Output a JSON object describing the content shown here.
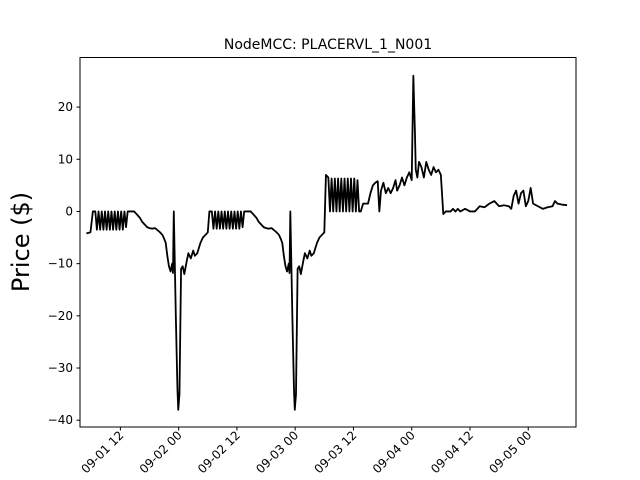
{
  "chart_data": {
    "type": "line",
    "title": "NodeMCC: PLACERVL_1_N001",
    "xlabel": "",
    "ylabel": "Price ($)",
    "ylim": [
      -41.3,
      29.5
    ],
    "xlim": [
      "09-01 03:41",
      "09-05 09:50"
    ],
    "grid": false,
    "y_ticks": [
      -40,
      -30,
      -20,
      -10,
      0,
      10,
      20
    ],
    "y_tick_labels": [
      "−40",
      "−30",
      "−20",
      "−10",
      "0",
      "10",
      "20"
    ],
    "x_ticks": [
      "09-01 12:00",
      "09-02 00:00",
      "09-02 12:00",
      "09-03 00:00",
      "09-03 12:00",
      "09-04 00:00",
      "09-04 12:00",
      "09-05 00:00"
    ],
    "x_tick_labels": [
      "09-01 12",
      "09-02 00",
      "09-02 12",
      "09-03 00",
      "09-03 12",
      "09-04 00",
      "09-04 12",
      "09-05 00"
    ],
    "series": [
      {
        "color": "#000000",
        "points": [
          [
            "09-01 05:00",
            -4.2
          ],
          [
            "09-01 05:50",
            -4.0
          ],
          [
            "09-01 06:20",
            0.0
          ],
          [
            "09-01 06:50",
            0.0
          ],
          [
            "09-01 07:10",
            -3.5
          ],
          [
            "09-01 07:30",
            0.0
          ],
          [
            "09-01 07:50",
            -3.5
          ],
          [
            "09-01 08:10",
            0.0
          ],
          [
            "09-01 08:30",
            -3.5
          ],
          [
            "09-01 08:50",
            0.0
          ],
          [
            "09-01 09:10",
            -3.5
          ],
          [
            "09-01 09:30",
            0.0
          ],
          [
            "09-01 09:50",
            -3.5
          ],
          [
            "09-01 10:10",
            0.0
          ],
          [
            "09-01 10:30",
            -3.5
          ],
          [
            "09-01 10:50",
            0.0
          ],
          [
            "09-01 11:10",
            -3.5
          ],
          [
            "09-01 11:30",
            0.0
          ],
          [
            "09-01 11:50",
            -3.5
          ],
          [
            "09-01 12:10",
            0.0
          ],
          [
            "09-01 12:30",
            -3.5
          ],
          [
            "09-01 12:50",
            0.0
          ],
          [
            "09-01 13:10",
            -3.0
          ],
          [
            "09-01 13:30",
            0.0
          ],
          [
            "09-01 14:50",
            0.0
          ],
          [
            "09-01 15:20",
            -0.5
          ],
          [
            "09-01 16:00",
            -1.2
          ],
          [
            "09-01 16:30",
            -2.0
          ],
          [
            "09-01 17:00",
            -2.5
          ],
          [
            "09-01 17:30",
            -3.0
          ],
          [
            "09-01 18:00",
            -3.2
          ],
          [
            "09-01 18:30",
            -3.3
          ],
          [
            "09-01 19:10",
            -3.2
          ],
          [
            "09-01 19:40",
            -3.6
          ],
          [
            "09-01 20:10",
            -4.0
          ],
          [
            "09-01 20:40",
            -4.5
          ],
          [
            "09-01 21:00",
            -5.2
          ],
          [
            "09-01 21:20",
            -6.0
          ],
          [
            "09-01 21:40",
            -8.5
          ],
          [
            "09-01 22:00",
            -10.5
          ],
          [
            "09-01 22:20",
            -11.5
          ],
          [
            "09-01 22:40",
            -10.0
          ],
          [
            "09-01 22:50",
            -11.8
          ],
          [
            "09-01 23:00",
            0.0
          ],
          [
            "09-01 23:25",
            -20.0
          ],
          [
            "09-01 23:45",
            -34.0
          ],
          [
            "09-01 23:55",
            -38.0
          ],
          [
            "09-02 00:10",
            -35.0
          ],
          [
            "09-02 00:30",
            -11.0
          ],
          [
            "09-02 00:50",
            -10.5
          ],
          [
            "09-02 01:10",
            -12.0
          ],
          [
            "09-02 01:40",
            -9.5
          ],
          [
            "09-02 02:00",
            -8.0
          ],
          [
            "09-02 02:30",
            -9.0
          ],
          [
            "09-02 03:00",
            -7.5
          ],
          [
            "09-02 03:20",
            -8.5
          ],
          [
            "09-02 03:50",
            -8.0
          ],
          [
            "09-02 04:30",
            -6.0
          ],
          [
            "09-02 05:00",
            -5.0
          ],
          [
            "09-02 05:30",
            -4.5
          ],
          [
            "09-02 06:00",
            -4.0
          ],
          [
            "09-02 06:20",
            0.0
          ],
          [
            "09-02 06:50",
            0.0
          ],
          [
            "09-02 07:10",
            -3.3
          ],
          [
            "09-02 07:30",
            0.0
          ],
          [
            "09-02 07:50",
            -3.3
          ],
          [
            "09-02 08:10",
            0.0
          ],
          [
            "09-02 08:30",
            -3.3
          ],
          [
            "09-02 08:50",
            0.0
          ],
          [
            "09-02 09:10",
            -3.3
          ],
          [
            "09-02 09:30",
            0.0
          ],
          [
            "09-02 09:50",
            -3.3
          ],
          [
            "09-02 10:10",
            0.0
          ],
          [
            "09-02 10:30",
            -3.3
          ],
          [
            "09-02 10:50",
            0.0
          ],
          [
            "09-02 11:10",
            -3.3
          ],
          [
            "09-02 11:30",
            0.0
          ],
          [
            "09-02 11:50",
            -3.3
          ],
          [
            "09-02 12:10",
            0.0
          ],
          [
            "09-02 12:30",
            -3.3
          ],
          [
            "09-02 12:50",
            0.0
          ],
          [
            "09-02 13:10",
            -3.0
          ],
          [
            "09-02 13:30",
            0.0
          ],
          [
            "09-02 14:50",
            0.0
          ],
          [
            "09-02 15:20",
            -0.5
          ],
          [
            "09-02 16:00",
            -1.2
          ],
          [
            "09-02 16:30",
            -2.0
          ],
          [
            "09-02 17:00",
            -2.5
          ],
          [
            "09-02 17:30",
            -3.0
          ],
          [
            "09-02 18:00",
            -3.2
          ],
          [
            "09-02 18:30",
            -3.3
          ],
          [
            "09-02 19:10",
            -3.2
          ],
          [
            "09-02 19:40",
            -3.6
          ],
          [
            "09-02 20:10",
            -4.0
          ],
          [
            "09-02 20:40",
            -4.5
          ],
          [
            "09-02 21:00",
            -5.2
          ],
          [
            "09-02 21:20",
            -6.0
          ],
          [
            "09-02 21:40",
            -8.5
          ],
          [
            "09-02 22:00",
            -10.5
          ],
          [
            "09-02 22:20",
            -11.5
          ],
          [
            "09-02 22:40",
            -10.0
          ],
          [
            "09-02 22:50",
            -11.8
          ],
          [
            "09-02 23:00",
            0.0
          ],
          [
            "09-02 23:25",
            -20.0
          ],
          [
            "09-02 23:45",
            -34.0
          ],
          [
            "09-02 23:55",
            -38.0
          ],
          [
            "09-03 00:10",
            -35.0
          ],
          [
            "09-03 00:30",
            -11.0
          ],
          [
            "09-03 00:50",
            -10.5
          ],
          [
            "09-03 01:10",
            -12.0
          ],
          [
            "09-03 01:40",
            -9.5
          ],
          [
            "09-03 02:00",
            -8.0
          ],
          [
            "09-03 02:30",
            -9.0
          ],
          [
            "09-03 03:00",
            -7.5
          ],
          [
            "09-03 03:20",
            -8.5
          ],
          [
            "09-03 03:50",
            -8.0
          ],
          [
            "09-03 04:30",
            -6.0
          ],
          [
            "09-03 05:00",
            -5.0
          ],
          [
            "09-03 05:30",
            -4.5
          ],
          [
            "09-03 06:00",
            -4.0
          ],
          [
            "09-03 06:20",
            7.0
          ],
          [
            "09-03 06:50",
            6.5
          ],
          [
            "09-03 07:10",
            0.0
          ],
          [
            "09-03 07:30",
            6.3
          ],
          [
            "09-03 07:50",
            0.0
          ],
          [
            "09-03 08:10",
            6.3
          ],
          [
            "09-03 08:30",
            0.0
          ],
          [
            "09-03 08:50",
            6.3
          ],
          [
            "09-03 09:10",
            0.0
          ],
          [
            "09-03 09:30",
            6.3
          ],
          [
            "09-03 09:50",
            0.0
          ],
          [
            "09-03 10:10",
            6.3
          ],
          [
            "09-03 10:30",
            0.0
          ],
          [
            "09-03 10:50",
            6.3
          ],
          [
            "09-03 11:10",
            0.0
          ],
          [
            "09-03 11:30",
            6.3
          ],
          [
            "09-03 11:50",
            0.0
          ],
          [
            "09-03 12:10",
            6.3
          ],
          [
            "09-03 12:30",
            0.0
          ],
          [
            "09-03 12:50",
            6.0
          ],
          [
            "09-03 13:10",
            0.0
          ],
          [
            "09-03 13:30",
            0.0
          ],
          [
            "09-03 14:00",
            1.5
          ],
          [
            "09-03 15:00",
            1.5
          ],
          [
            "09-03 15:30",
            3.5
          ],
          [
            "09-03 16:00",
            5.0
          ],
          [
            "09-03 16:30",
            5.5
          ],
          [
            "09-03 17:00",
            5.8
          ],
          [
            "09-03 17:20",
            0.0
          ],
          [
            "09-03 17:40",
            4.0
          ],
          [
            "09-03 18:10",
            5.5
          ],
          [
            "09-03 18:40",
            3.5
          ],
          [
            "09-03 19:10",
            4.5
          ],
          [
            "09-03 19:40",
            3.5
          ],
          [
            "09-03 20:10",
            4.5
          ],
          [
            "09-03 20:40",
            6.0
          ],
          [
            "09-03 21:00",
            4.0
          ],
          [
            "09-03 21:30",
            5.0
          ],
          [
            "09-03 22:00",
            6.5
          ],
          [
            "09-03 22:30",
            5.0
          ],
          [
            "09-03 23:00",
            6.5
          ],
          [
            "09-03 23:30",
            7.5
          ],
          [
            "09-04 00:00",
            6.0
          ],
          [
            "09-04 00:20",
            26.0
          ],
          [
            "09-04 00:40",
            15.0
          ],
          [
            "09-04 00:50",
            8.0
          ],
          [
            "09-04 01:10",
            6.5
          ],
          [
            "09-04 01:30",
            9.5
          ],
          [
            "09-04 02:00",
            8.5
          ],
          [
            "09-04 02:30",
            6.5
          ],
          [
            "09-04 03:00",
            9.5
          ],
          [
            "09-04 03:30",
            8.0
          ],
          [
            "09-04 04:00",
            7.0
          ],
          [
            "09-04 04:30",
            8.5
          ],
          [
            "09-04 05:00",
            7.5
          ],
          [
            "09-04 05:30",
            8.0
          ],
          [
            "09-04 06:00",
            7.0
          ],
          [
            "09-04 06:30",
            -0.5
          ],
          [
            "09-04 07:00",
            0.0
          ],
          [
            "09-04 08:00",
            0.0
          ],
          [
            "09-04 08:30",
            0.5
          ],
          [
            "09-04 09:00",
            0.0
          ],
          [
            "09-04 09:30",
            0.5
          ],
          [
            "09-04 10:00",
            0.0
          ],
          [
            "09-04 11:00",
            0.5
          ],
          [
            "09-04 12:00",
            0.0
          ],
          [
            "09-04 13:00",
            0.0
          ],
          [
            "09-04 14:00",
            1.0
          ],
          [
            "09-04 15:00",
            0.8
          ],
          [
            "09-04 16:00",
            1.5
          ],
          [
            "09-04 17:00",
            2.0
          ],
          [
            "09-04 18:00",
            1.0
          ],
          [
            "09-04 19:00",
            1.2
          ],
          [
            "09-04 20:00",
            1.0
          ],
          [
            "09-04 20:30",
            0.5
          ],
          [
            "09-04 21:00",
            3.0
          ],
          [
            "09-04 21:30",
            4.0
          ],
          [
            "09-04 22:00",
            1.5
          ],
          [
            "09-04 22:30",
            3.5
          ],
          [
            "09-04 23:00",
            4.0
          ],
          [
            "09-04 23:30",
            1.0
          ],
          [
            "09-05 00:00",
            2.0
          ],
          [
            "09-05 00:30",
            4.5
          ],
          [
            "09-05 01:00",
            1.5
          ],
          [
            "09-05 02:00",
            1.0
          ],
          [
            "09-05 03:00",
            0.5
          ],
          [
            "09-05 04:00",
            0.8
          ],
          [
            "09-05 05:00",
            1.0
          ],
          [
            "09-05 05:30",
            2.0
          ],
          [
            "09-05 06:00",
            1.5
          ],
          [
            "09-05 07:00",
            1.3
          ],
          [
            "09-05 08:00",
            1.2
          ]
        ]
      }
    ]
  }
}
